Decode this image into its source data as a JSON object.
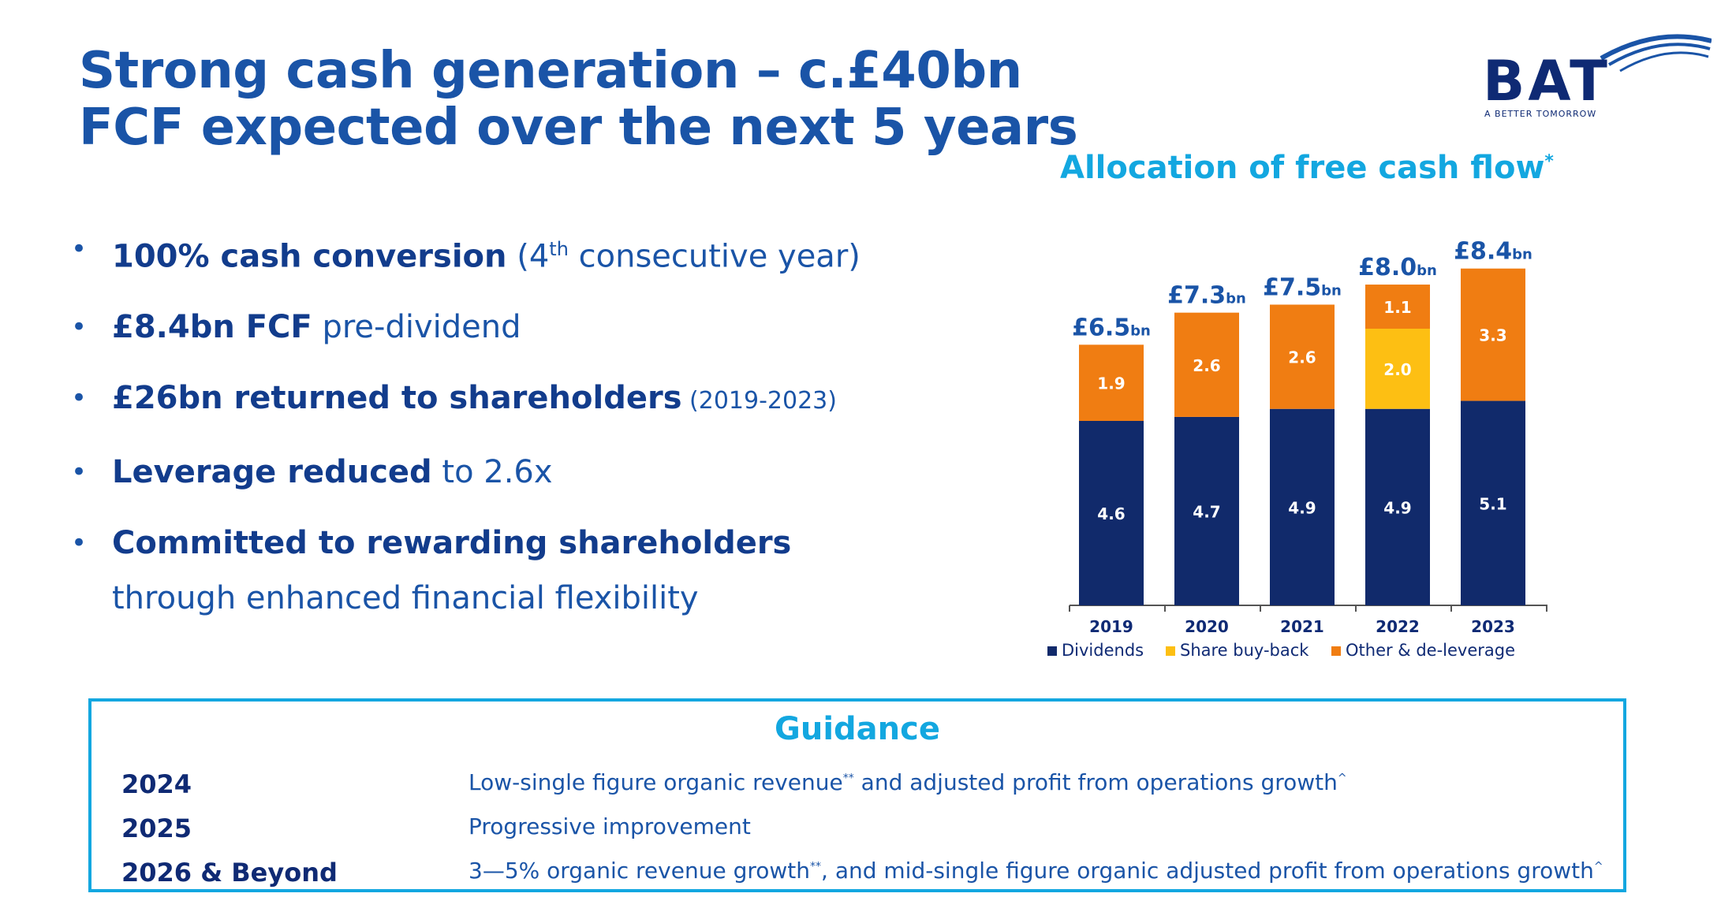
{
  "title": "Strong cash generation – c.£40bn FCF expected over the next 5 years",
  "logo": {
    "name": "BAT",
    "tagline": "A BETTER TOMORROW"
  },
  "bullets": [
    {
      "bold": "100% cash conversion",
      "rest_pre": " (4",
      "sup": "th",
      "rest_post": " consecutive year)"
    },
    {
      "bold": "£8.4bn FCF",
      "rest": " pre-dividend"
    },
    {
      "bold": "£26bn returned to shareholders",
      "rest": " (2019-2023)"
    },
    {
      "bold": "Leverage reduced",
      "rest": " to 2.6x"
    },
    {
      "bold": "Committed to rewarding shareholders",
      "rest": "through enhanced financial flexibility"
    }
  ],
  "chart_data": {
    "type": "bar",
    "stacked": true,
    "title": "Allocation of free cash flow",
    "title_mark": "*",
    "categories": [
      "2019",
      "2020",
      "2021",
      "2022",
      "2023"
    ],
    "series": [
      {
        "name": "Dividends",
        "color": "#112a6b",
        "values": [
          4.6,
          4.7,
          4.9,
          4.9,
          5.1
        ]
      },
      {
        "name": "Share buy-back",
        "color": "#fdbf13",
        "values": [
          0,
          0,
          0,
          2.0,
          0
        ]
      },
      {
        "name": "Other & de-leverage",
        "color": "#f07d12",
        "values": [
          1.9,
          2.6,
          2.6,
          1.1,
          3.3
        ]
      }
    ],
    "totals": [
      "£6.5",
      "£7.3",
      "£7.5",
      "£8.0",
      "£8.4"
    ],
    "total_unit": "bn",
    "ylim": [
      0,
      9.2
    ],
    "legend_position": "bottom"
  },
  "guidance": {
    "title": "Guidance",
    "rows": [
      {
        "year": "2024",
        "text": "Low-single figure organic revenue",
        "sup1": "**",
        "text2": " and adjusted profit from operations growth",
        "sup2": "^"
      },
      {
        "year": "2025",
        "text": "Progressive improvement",
        "sup1": "",
        "text2": "",
        "sup2": ""
      },
      {
        "year": "2026 & Beyond",
        "text": "3—5% organic revenue growth",
        "sup1": "**",
        "text2": ", and mid-single figure organic adjusted profit from operations growth",
        "sup2": "^"
      }
    ]
  },
  "colors": {
    "navy": "#112a6b",
    "blue": "#1a54a7",
    "cyan": "#13a7e0",
    "orange": "#f07d12",
    "yellow": "#fdbf13"
  }
}
